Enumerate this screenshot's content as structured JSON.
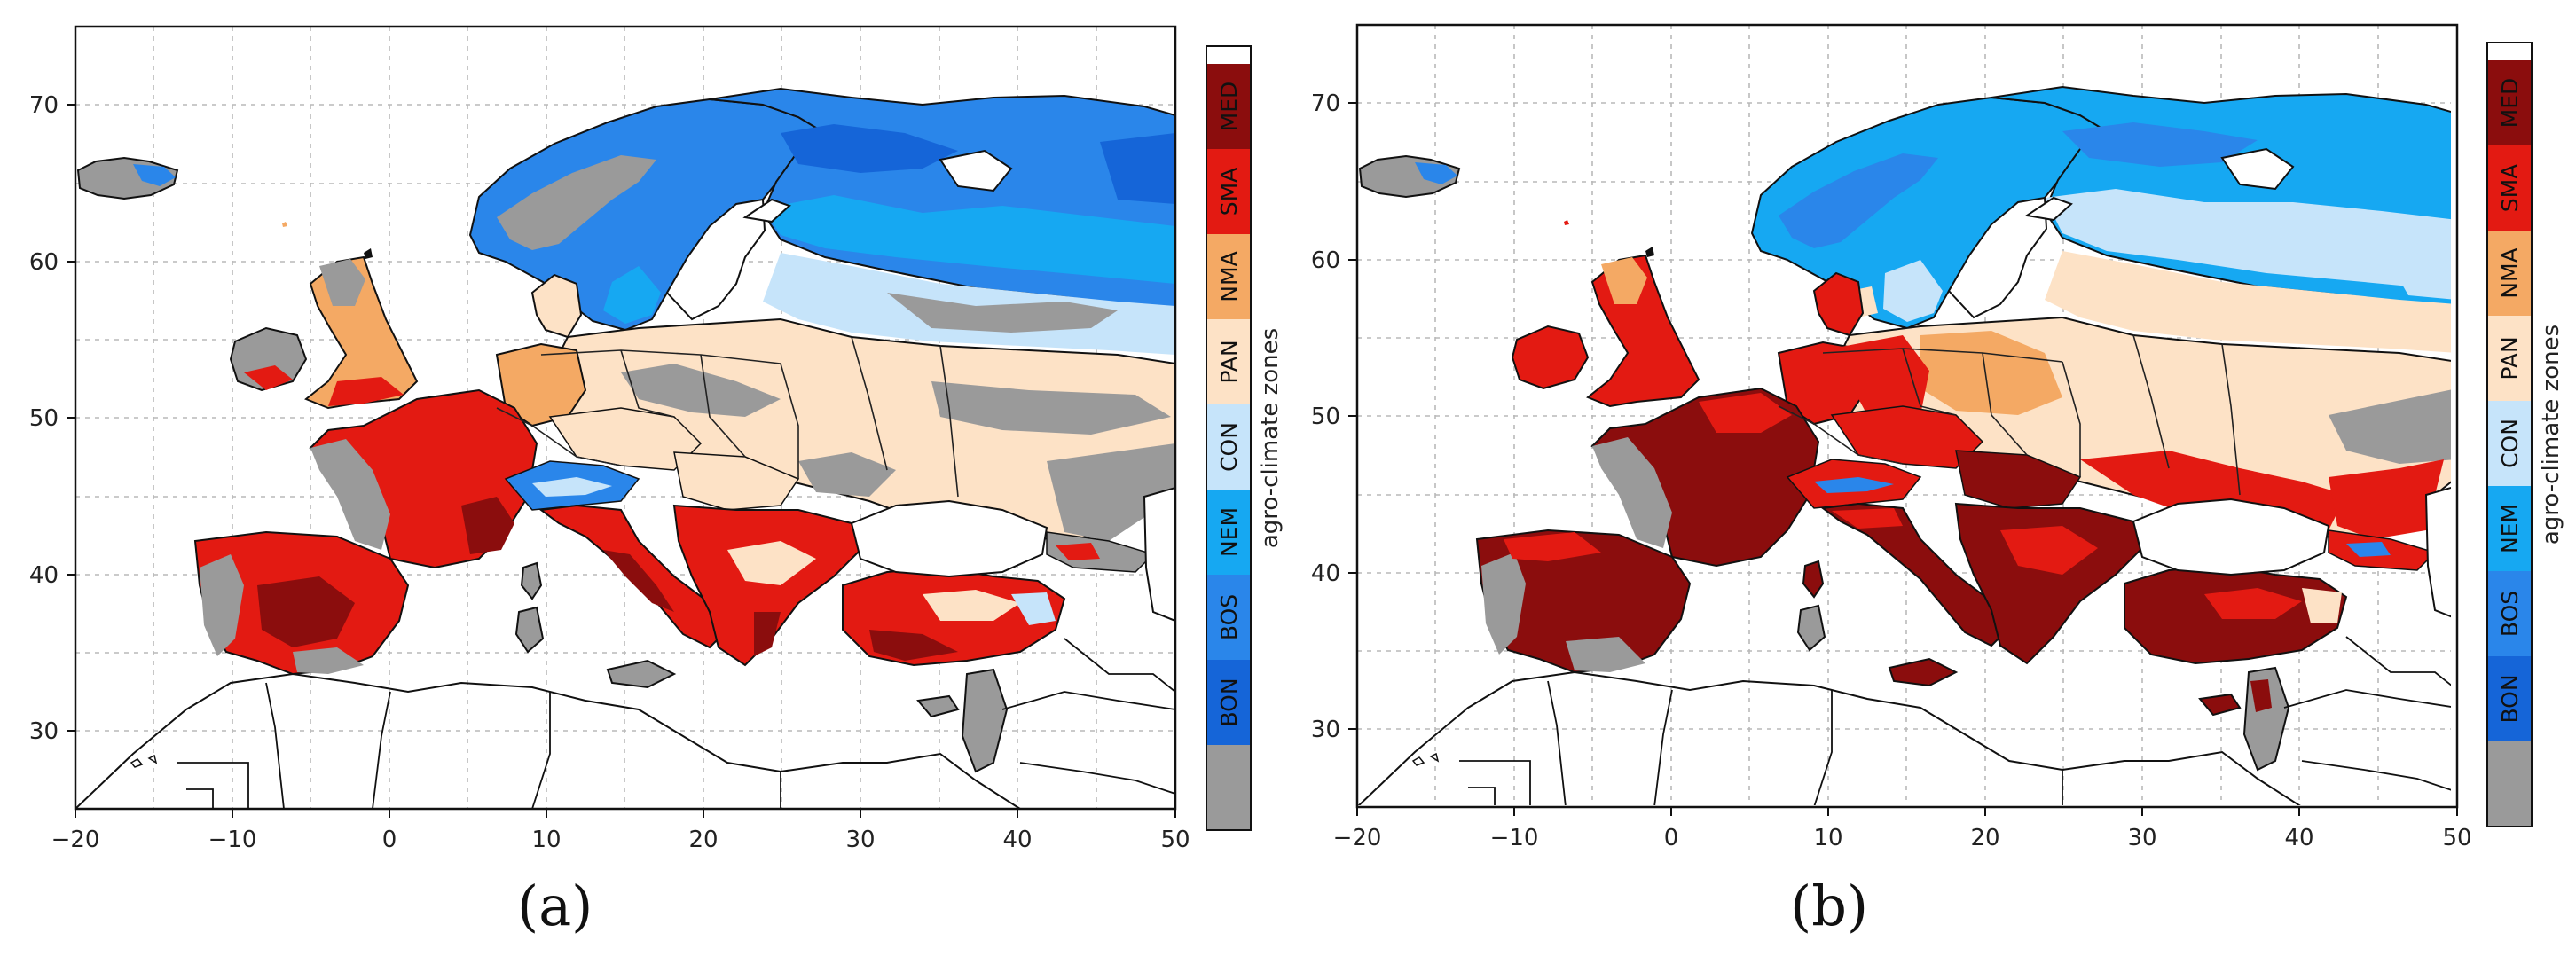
{
  "figure": {
    "panels": [
      {
        "id": "a",
        "label": "(a)"
      },
      {
        "id": "b",
        "label": "(b)"
      }
    ]
  },
  "axes": {
    "x_ticks": [
      "−20",
      "−10",
      "0",
      "10",
      "20",
      "30",
      "40",
      "50"
    ],
    "x_values": [
      -20,
      -10,
      0,
      10,
      20,
      30,
      40,
      50
    ],
    "y_ticks": [
      "30",
      "40",
      "50",
      "60",
      "70"
    ],
    "y_values": [
      30,
      40,
      50,
      60,
      70
    ],
    "xlim": [
      -20,
      50
    ],
    "ylim": [
      25,
      75
    ]
  },
  "colorbar": {
    "title": "agro-climate zones",
    "zones": [
      {
        "label": "",
        "color": "#9a9a9a"
      },
      {
        "label": "BON",
        "color": "#1565d8"
      },
      {
        "label": "BOS",
        "color": "#2a86ea"
      },
      {
        "label": "NEM",
        "color": "#16a8f2"
      },
      {
        "label": "CON",
        "color": "#c6e4fa"
      },
      {
        "label": "PAN",
        "color": "#fde2c6"
      },
      {
        "label": "NMA",
        "color": "#f4a964"
      },
      {
        "label": "SMA",
        "color": "#e31a12"
      },
      {
        "label": "MED",
        "color": "#8b0d0d"
      }
    ]
  },
  "colors": {
    "gray": "#9a9a9a",
    "BON": "#1565d8",
    "BOS": "#2a86ea",
    "NEM": "#16a8f2",
    "CON": "#c6e4fa",
    "PAN": "#fde2c6",
    "NMA": "#f4a964",
    "SMA": "#e31a12",
    "MED": "#8b0d0d"
  }
}
